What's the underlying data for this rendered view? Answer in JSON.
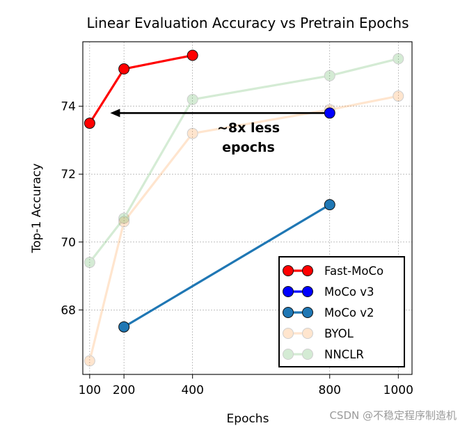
{
  "chart_data": {
    "type": "line",
    "title": "Linear Evaluation Accuracy vs Pretrain Epochs",
    "xlabel": "Epochs",
    "ylabel": "Top-1 Accuracy",
    "xlim": [
      80,
      1040
    ],
    "ylim": [
      66.1,
      75.9
    ],
    "xticks": [
      100,
      200,
      400,
      800,
      1000
    ],
    "yticks": [
      68,
      70,
      72,
      74
    ],
    "grid": true,
    "legend_position": "lower-right",
    "series": [
      {
        "name": "Fast-MoCo",
        "color": "#ff0000",
        "alpha": 1.0,
        "x": [
          100,
          200,
          400
        ],
        "y": [
          73.5,
          75.1,
          75.5
        ]
      },
      {
        "name": "MoCo v3",
        "color": "#0000ff",
        "alpha": 1.0,
        "x": [
          800
        ],
        "y": [
          73.8
        ]
      },
      {
        "name": "MoCo v2",
        "color": "#1f77b4",
        "alpha": 1.0,
        "x": [
          200,
          800
        ],
        "y": [
          67.5,
          71.1
        ]
      },
      {
        "name": "BYOL",
        "color": "#ff7f0e",
        "alpha": 0.2,
        "x": [
          100,
          200,
          400,
          800,
          1000
        ],
        "y": [
          66.5,
          70.6,
          73.2,
          73.9,
          74.3
        ]
      },
      {
        "name": "NNCLR",
        "color": "#2ca02c",
        "alpha": 0.2,
        "x": [
          100,
          200,
          400,
          800,
          1000
        ],
        "y": [
          69.4,
          70.7,
          74.2,
          74.9,
          75.4
        ]
      }
    ],
    "annotation": {
      "lines": [
        "~8x less",
        "epochs"
      ],
      "arrow_from": {
        "x": 785,
        "y": 73.8
      },
      "arrow_to": {
        "x": 160,
        "y": 73.8
      }
    }
  },
  "watermark": "CSDN @不稳定程序制造机"
}
